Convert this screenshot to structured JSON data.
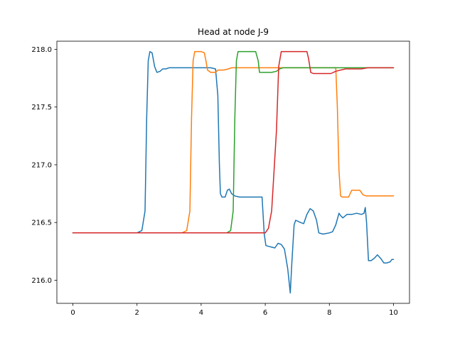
{
  "chart_data": {
    "type": "line",
    "title": "Head at node J-9",
    "xlabel": "",
    "ylabel": "",
    "xlim": [
      -0.5,
      10.5
    ],
    "ylim": [
      215.8,
      218.07
    ],
    "xticks": [
      0,
      2,
      4,
      6,
      8,
      10
    ],
    "xtick_labels": [
      "0",
      "2",
      "4",
      "6",
      "8",
      "10"
    ],
    "yticks": [
      216.0,
      216.5,
      217.0,
      217.5,
      218.0
    ],
    "ytick_labels": [
      "216.0",
      "216.5",
      "217.0",
      "217.5",
      "218.0"
    ],
    "grid": false,
    "series": [
      {
        "color": "#1f77b4",
        "points": [
          [
            0,
            216.41
          ],
          [
            2.0,
            216.41
          ],
          [
            2.15,
            216.43
          ],
          [
            2.25,
            216.6
          ],
          [
            2.3,
            217.4
          ],
          [
            2.35,
            217.9
          ],
          [
            2.4,
            217.98
          ],
          [
            2.47,
            217.97
          ],
          [
            2.55,
            217.85
          ],
          [
            2.62,
            217.8
          ],
          [
            2.72,
            217.81
          ],
          [
            2.8,
            217.83
          ],
          [
            2.9,
            217.83
          ],
          [
            3.0,
            217.84
          ],
          [
            4.3,
            217.84
          ],
          [
            4.45,
            217.83
          ],
          [
            4.52,
            217.6
          ],
          [
            4.57,
            217.0
          ],
          [
            4.6,
            216.75
          ],
          [
            4.65,
            216.72
          ],
          [
            4.75,
            216.72
          ],
          [
            4.82,
            216.78
          ],
          [
            4.88,
            216.79
          ],
          [
            4.95,
            216.75
          ],
          [
            5.05,
            216.73
          ],
          [
            5.2,
            216.72
          ],
          [
            5.9,
            216.72
          ],
          [
            5.97,
            216.4
          ],
          [
            6.02,
            216.3
          ],
          [
            6.15,
            216.29
          ],
          [
            6.3,
            216.28
          ],
          [
            6.4,
            216.32
          ],
          [
            6.5,
            216.31
          ],
          [
            6.6,
            216.27
          ],
          [
            6.7,
            216.1
          ],
          [
            6.78,
            215.89
          ],
          [
            6.83,
            216.15
          ],
          [
            6.9,
            216.48
          ],
          [
            6.95,
            216.52
          ],
          [
            7.1,
            216.5
          ],
          [
            7.2,
            216.49
          ],
          [
            7.3,
            216.57
          ],
          [
            7.4,
            216.62
          ],
          [
            7.5,
            216.6
          ],
          [
            7.6,
            216.52
          ],
          [
            7.67,
            216.41
          ],
          [
            7.8,
            216.4
          ],
          [
            8.0,
            216.41
          ],
          [
            8.1,
            216.42
          ],
          [
            8.2,
            216.48
          ],
          [
            8.3,
            216.58
          ],
          [
            8.35,
            216.56
          ],
          [
            8.42,
            216.54
          ],
          [
            8.55,
            216.57
          ],
          [
            8.7,
            216.57
          ],
          [
            8.85,
            216.58
          ],
          [
            9.0,
            216.57
          ],
          [
            9.08,
            216.58
          ],
          [
            9.12,
            216.63
          ],
          [
            9.16,
            216.5
          ],
          [
            9.22,
            216.17
          ],
          [
            9.3,
            216.17
          ],
          [
            9.4,
            216.19
          ],
          [
            9.5,
            216.22
          ],
          [
            9.6,
            216.19
          ],
          [
            9.7,
            216.15
          ],
          [
            9.8,
            216.15
          ],
          [
            9.9,
            216.16
          ],
          [
            9.95,
            216.18
          ],
          [
            10.0,
            216.18
          ]
        ]
      },
      {
        "color": "#ff7f0e",
        "points": [
          [
            0,
            216.41
          ],
          [
            3.4,
            216.41
          ],
          [
            3.55,
            216.43
          ],
          [
            3.65,
            216.6
          ],
          [
            3.7,
            217.4
          ],
          [
            3.75,
            217.9
          ],
          [
            3.8,
            217.98
          ],
          [
            4.0,
            217.98
          ],
          [
            4.1,
            217.97
          ],
          [
            4.15,
            217.9
          ],
          [
            4.2,
            217.82
          ],
          [
            4.3,
            217.8
          ],
          [
            4.45,
            217.8
          ],
          [
            4.52,
            217.82
          ],
          [
            4.7,
            217.82
          ],
          [
            4.85,
            217.83
          ],
          [
            4.95,
            217.84
          ],
          [
            8.2,
            217.84
          ],
          [
            8.25,
            217.5
          ],
          [
            8.3,
            216.95
          ],
          [
            8.35,
            216.73
          ],
          [
            8.4,
            216.72
          ],
          [
            8.6,
            216.72
          ],
          [
            8.7,
            216.78
          ],
          [
            8.95,
            216.78
          ],
          [
            9.05,
            216.74
          ],
          [
            9.15,
            216.73
          ],
          [
            9.5,
            216.73
          ],
          [
            10.0,
            216.73
          ]
        ]
      },
      {
        "color": "#2ca02c",
        "points": [
          [
            0,
            216.41
          ],
          [
            4.8,
            216.41
          ],
          [
            4.92,
            216.43
          ],
          [
            5.0,
            216.6
          ],
          [
            5.05,
            217.4
          ],
          [
            5.1,
            217.9
          ],
          [
            5.15,
            217.98
          ],
          [
            5.7,
            217.98
          ],
          [
            5.78,
            217.9
          ],
          [
            5.82,
            217.8
          ],
          [
            5.95,
            217.8
          ],
          [
            6.2,
            217.8
          ],
          [
            6.35,
            217.81
          ],
          [
            6.45,
            217.83
          ],
          [
            6.55,
            217.84
          ],
          [
            10.0,
            217.84
          ]
        ]
      },
      {
        "color": "#d62728",
        "points": [
          [
            0,
            216.41
          ],
          [
            6.0,
            216.41
          ],
          [
            6.1,
            216.45
          ],
          [
            6.2,
            216.6
          ],
          [
            6.35,
            217.3
          ],
          [
            6.42,
            217.85
          ],
          [
            6.5,
            217.98
          ],
          [
            7.3,
            217.98
          ],
          [
            7.35,
            217.92
          ],
          [
            7.42,
            217.8
          ],
          [
            7.5,
            217.79
          ],
          [
            7.8,
            217.79
          ],
          [
            8.05,
            217.79
          ],
          [
            8.2,
            217.81
          ],
          [
            8.5,
            217.83
          ],
          [
            9.0,
            217.83
          ],
          [
            9.2,
            217.84
          ],
          [
            10.0,
            217.84
          ]
        ]
      }
    ]
  }
}
